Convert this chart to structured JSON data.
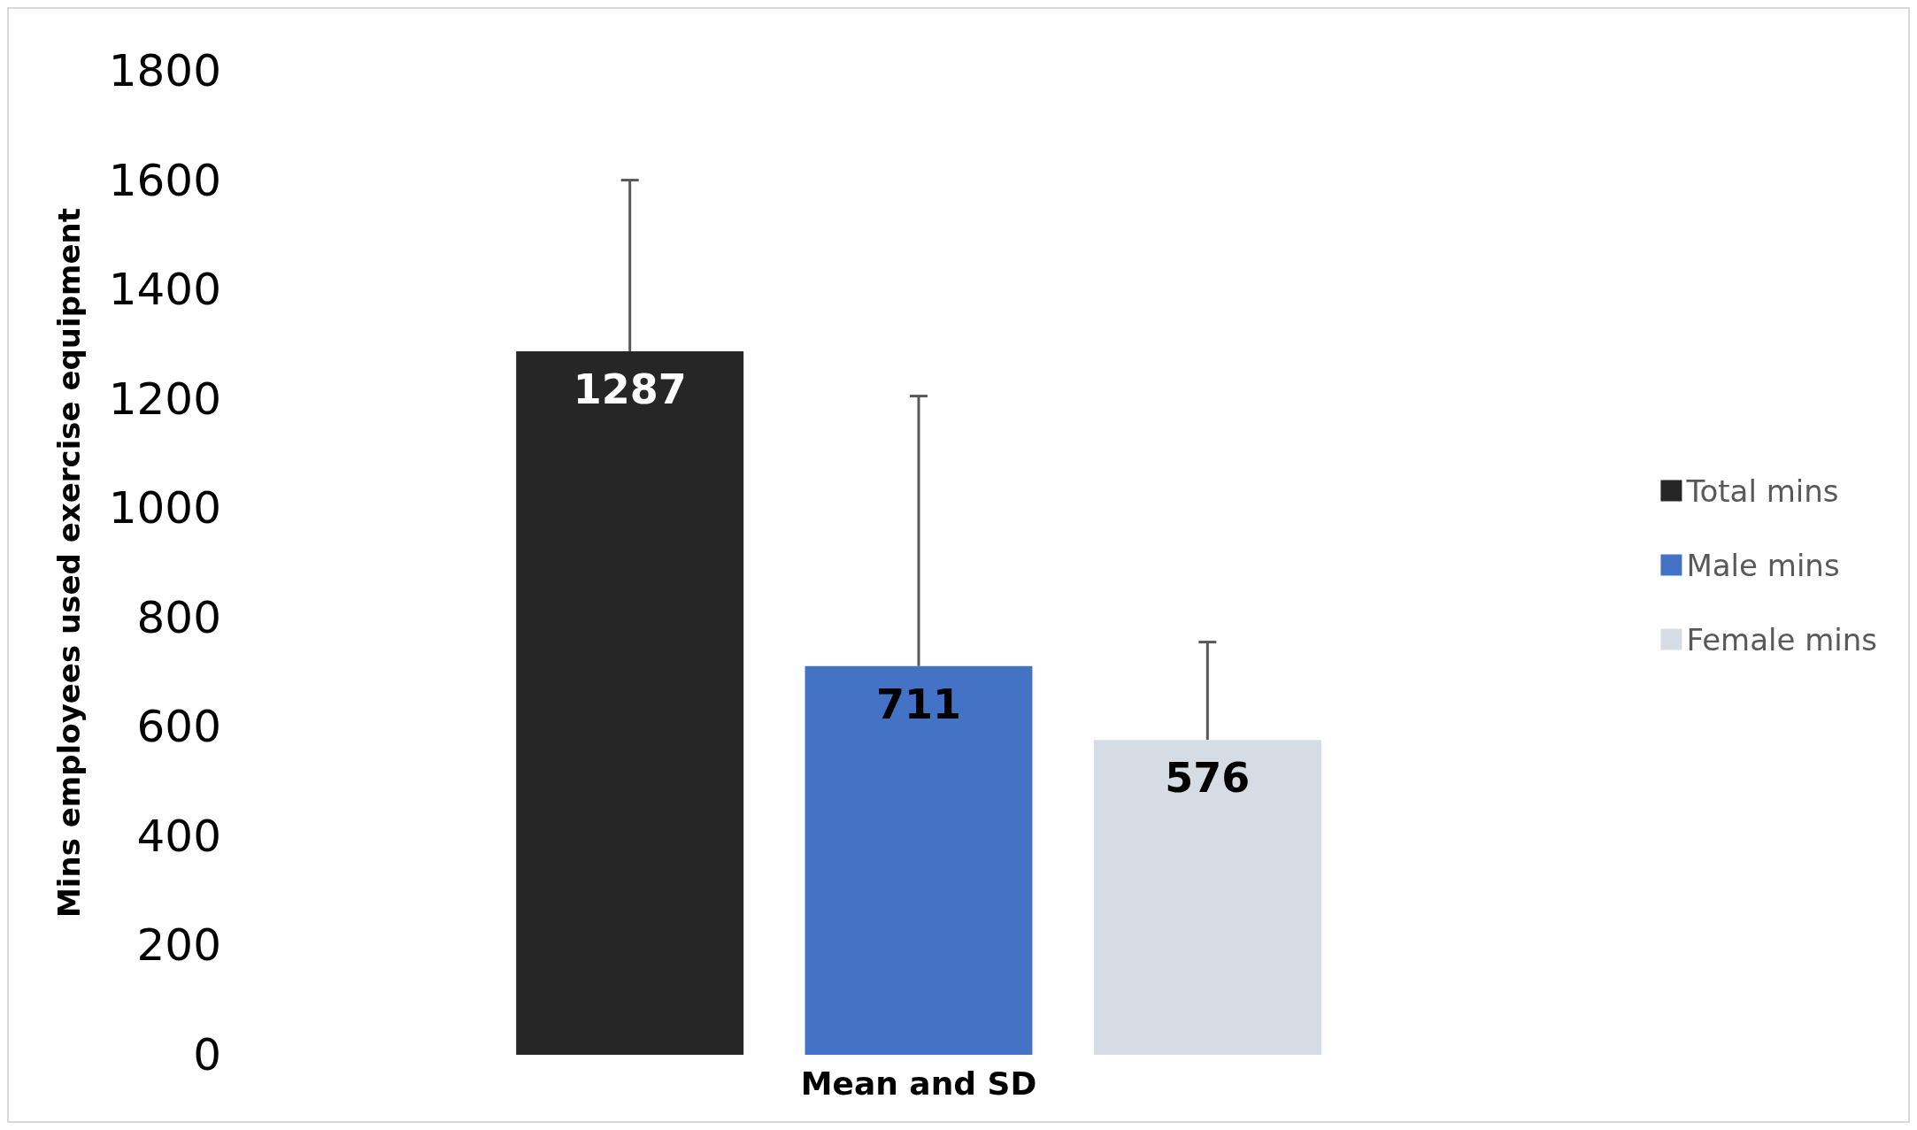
{
  "chart_data": {
    "type": "bar",
    "ylabel": "Mins employees used exercise equipment",
    "xlabel": "Mean and SD",
    "categories": [
      null
    ],
    "series": [
      {
        "name": "Total mins",
        "color": "#262626",
        "values": [
          1287
        ],
        "errors": [
          [
            1287,
            1600
          ]
        ]
      },
      {
        "name": "Male mins",
        "color": "#4472c4",
        "values": [
          711
        ],
        "errors": [
          [
            711,
            1205
          ]
        ]
      },
      {
        "name": "Female mins",
        "color": "#d6dce4",
        "values": [
          576
        ],
        "errors": [
          [
            576,
            755
          ]
        ]
      }
    ],
    "ylim": [
      0,
      1800
    ],
    "yticks": [
      0,
      200,
      400,
      600,
      800,
      1000,
      1200,
      1400,
      1600,
      1800
    ],
    "grid": false,
    "legend": "right",
    "data_labels": true
  }
}
